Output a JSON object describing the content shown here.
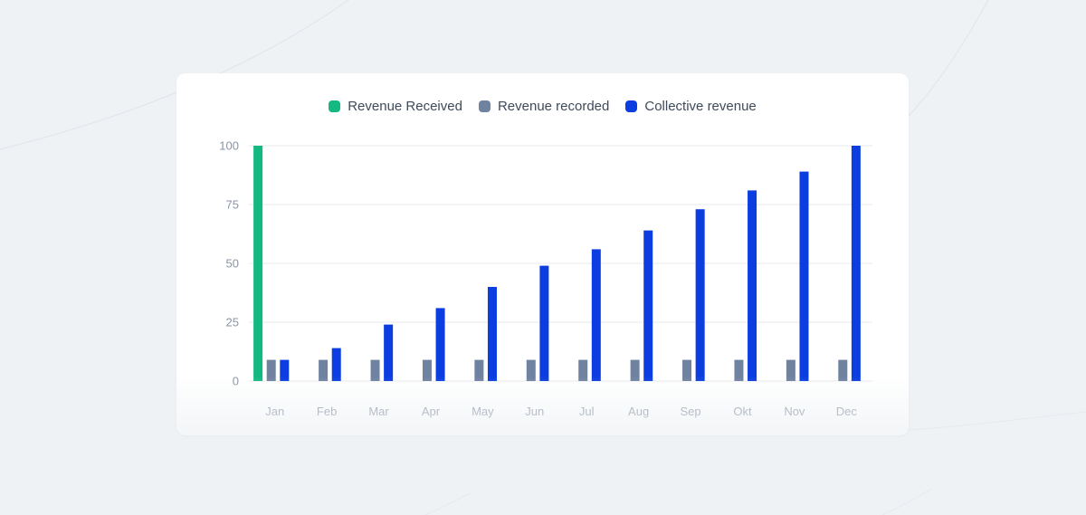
{
  "colors": {
    "received": "#13b981",
    "recorded": "#6f82a0",
    "collective": "#0b3de0",
    "grid": "#e6e9ee"
  },
  "chart_data": {
    "type": "bar",
    "categories": [
      "Jan",
      "Feb",
      "Mar",
      "Apr",
      "May",
      "Jun",
      "Jul",
      "Aug",
      "Sep",
      "Okt",
      "Nov",
      "Dec"
    ],
    "series": [
      {
        "name": "Revenue Received",
        "color": "#13b981",
        "values": [
          100,
          0,
          0,
          0,
          0,
          0,
          0,
          0,
          0,
          0,
          0,
          0
        ]
      },
      {
        "name": "Revenue recorded",
        "color": "#6f82a0",
        "values": [
          9,
          9,
          9,
          9,
          9,
          9,
          9,
          9,
          9,
          9,
          9,
          9
        ]
      },
      {
        "name": "Collective revenue",
        "color": "#0b3de0",
        "values": [
          9,
          14,
          24,
          31,
          40,
          49,
          56,
          64,
          73,
          81,
          89,
          100
        ]
      }
    ],
    "yticks": [
      0,
      25,
      50,
      75,
      100
    ],
    "ylim": [
      0,
      100
    ],
    "grid": true,
    "legend_position": "top-center"
  }
}
